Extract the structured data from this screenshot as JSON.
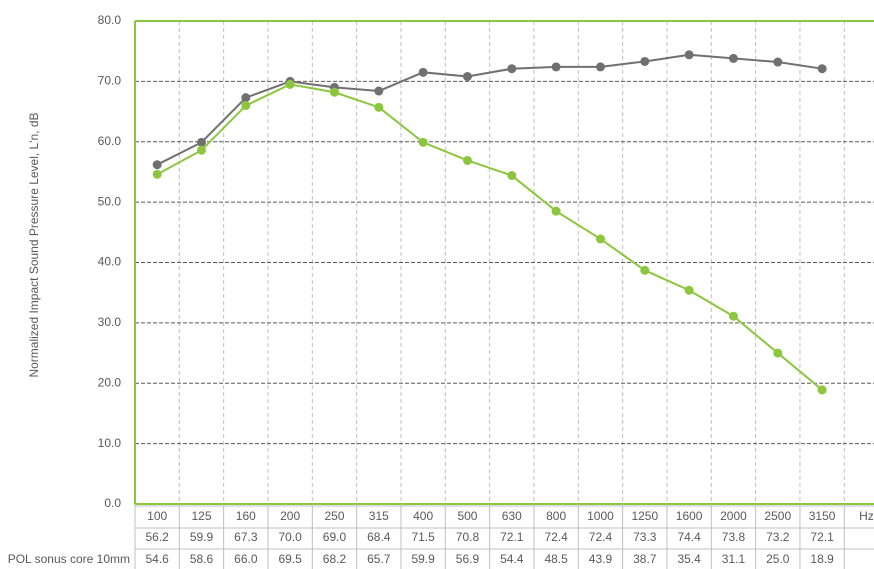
{
  "chart_data": {
    "type": "line",
    "y_label": "Normalized Impact Sound Pressure Level, L'n, dB",
    "x_unit": "Hz",
    "categories": [
      "100",
      "125",
      "160",
      "200",
      "250",
      "315",
      "400",
      "500",
      "630",
      "800",
      "1000",
      "1250",
      "1600",
      "2000",
      "2500",
      "3150"
    ],
    "series": [
      {
        "color": "#707070",
        "values": [
          56.2,
          59.9,
          67.3,
          70.0,
          69.0,
          68.4,
          71.5,
          70.8,
          72.1,
          72.4,
          72.4,
          73.3,
          74.4,
          73.8,
          73.2,
          72.1
        ],
        "value_labels": [
          "56.2",
          "59.9",
          "67.3",
          "70.0",
          "69.0",
          "68.4",
          "71.5",
          "70.8",
          "72.1",
          "72.4",
          "72.4",
          "73.3",
          "74.4",
          "73.8",
          "73.2",
          "72.1"
        ]
      },
      {
        "name": "POL sonus core 10mm",
        "color": "#8cc63f",
        "values": [
          54.6,
          58.6,
          66.0,
          69.5,
          68.2,
          65.7,
          59.9,
          56.9,
          54.4,
          48.5,
          43.9,
          38.7,
          35.4,
          31.1,
          25.0,
          18.9
        ],
        "value_labels": [
          "54.6",
          "58.6",
          "66.0",
          "69.5",
          "68.2",
          "65.7",
          "59.9",
          "56.9",
          "54.4",
          "48.5",
          "43.9",
          "38.7",
          "35.4",
          "31.1",
          "25.0",
          "18.9"
        ]
      }
    ],
    "ylim": [
      0,
      80
    ],
    "yticks": [
      {
        "value": 0,
        "label": "0.0"
      },
      {
        "value": 10,
        "label": "10.0"
      },
      {
        "value": 20,
        "label": "20.0"
      },
      {
        "value": 30,
        "label": "30.0"
      },
      {
        "value": 40,
        "label": "40.0"
      },
      {
        "value": 50,
        "label": "50.0"
      },
      {
        "value": 60,
        "label": "60.0"
      },
      {
        "value": 70,
        "label": "70.0"
      },
      {
        "value": 80,
        "label": "80.0"
      }
    ],
    "grid": true
  }
}
